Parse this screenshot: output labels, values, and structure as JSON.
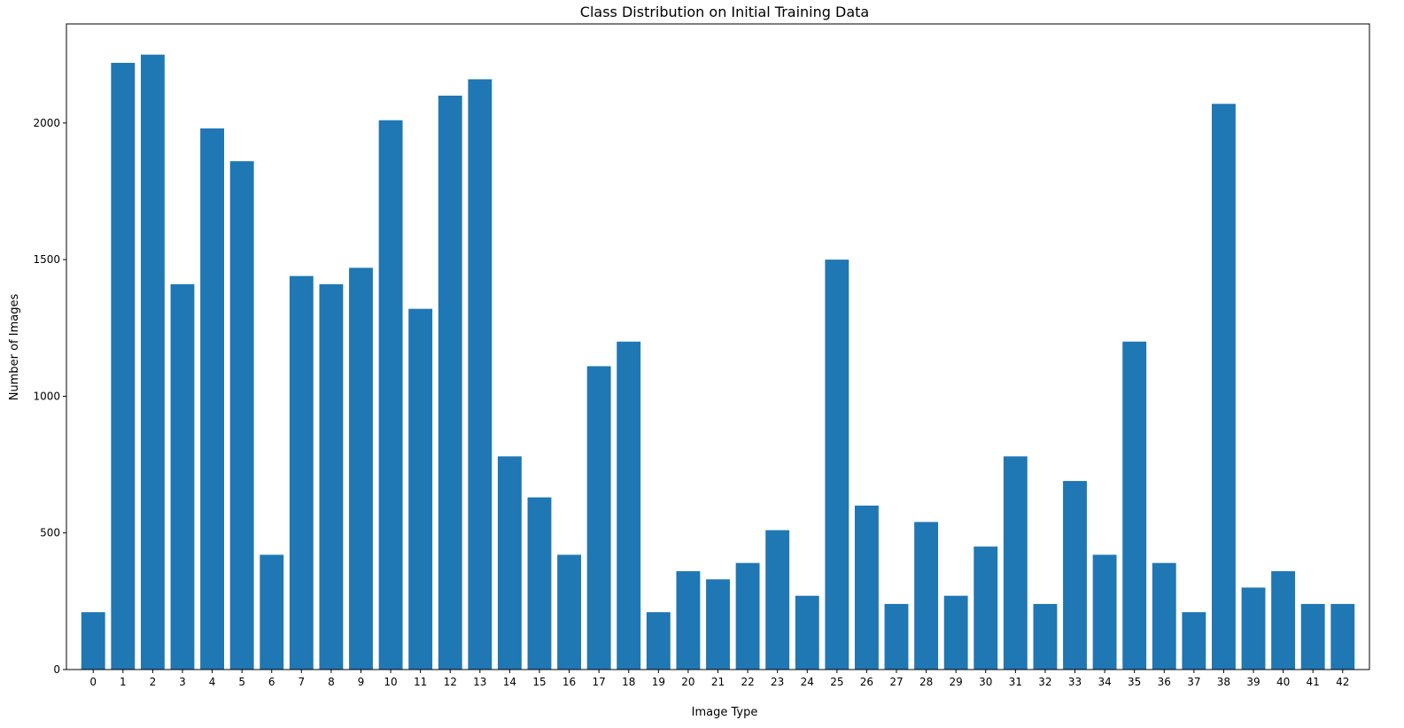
{
  "chart_data": {
    "type": "bar",
    "title": "Class Distribution on Initial Training Data",
    "xlabel": "Image Type",
    "ylabel": "Number of Images",
    "categories": [
      "0",
      "1",
      "2",
      "3",
      "4",
      "5",
      "6",
      "7",
      "8",
      "9",
      "10",
      "11",
      "12",
      "13",
      "14",
      "15",
      "16",
      "17",
      "18",
      "19",
      "20",
      "21",
      "22",
      "23",
      "24",
      "25",
      "26",
      "27",
      "28",
      "29",
      "30",
      "31",
      "32",
      "33",
      "34",
      "35",
      "36",
      "37",
      "38",
      "39",
      "40",
      "41",
      "42"
    ],
    "values": [
      210,
      2220,
      2250,
      1410,
      1980,
      1860,
      420,
      1440,
      1410,
      1470,
      2010,
      1320,
      2100,
      2160,
      780,
      630,
      420,
      1110,
      1200,
      210,
      360,
      330,
      390,
      510,
      270,
      1500,
      600,
      240,
      540,
      270,
      450,
      780,
      240,
      690,
      420,
      1200,
      390,
      210,
      2070,
      300,
      360,
      240,
      240
    ],
    "yticks": [
      0,
      500,
      1000,
      1500,
      2000
    ],
    "ylim": [
      0,
      2362.5
    ],
    "xlim": [
      -0.9,
      42.9
    ],
    "grid": false,
    "bar_color": "#1f77b4"
  }
}
